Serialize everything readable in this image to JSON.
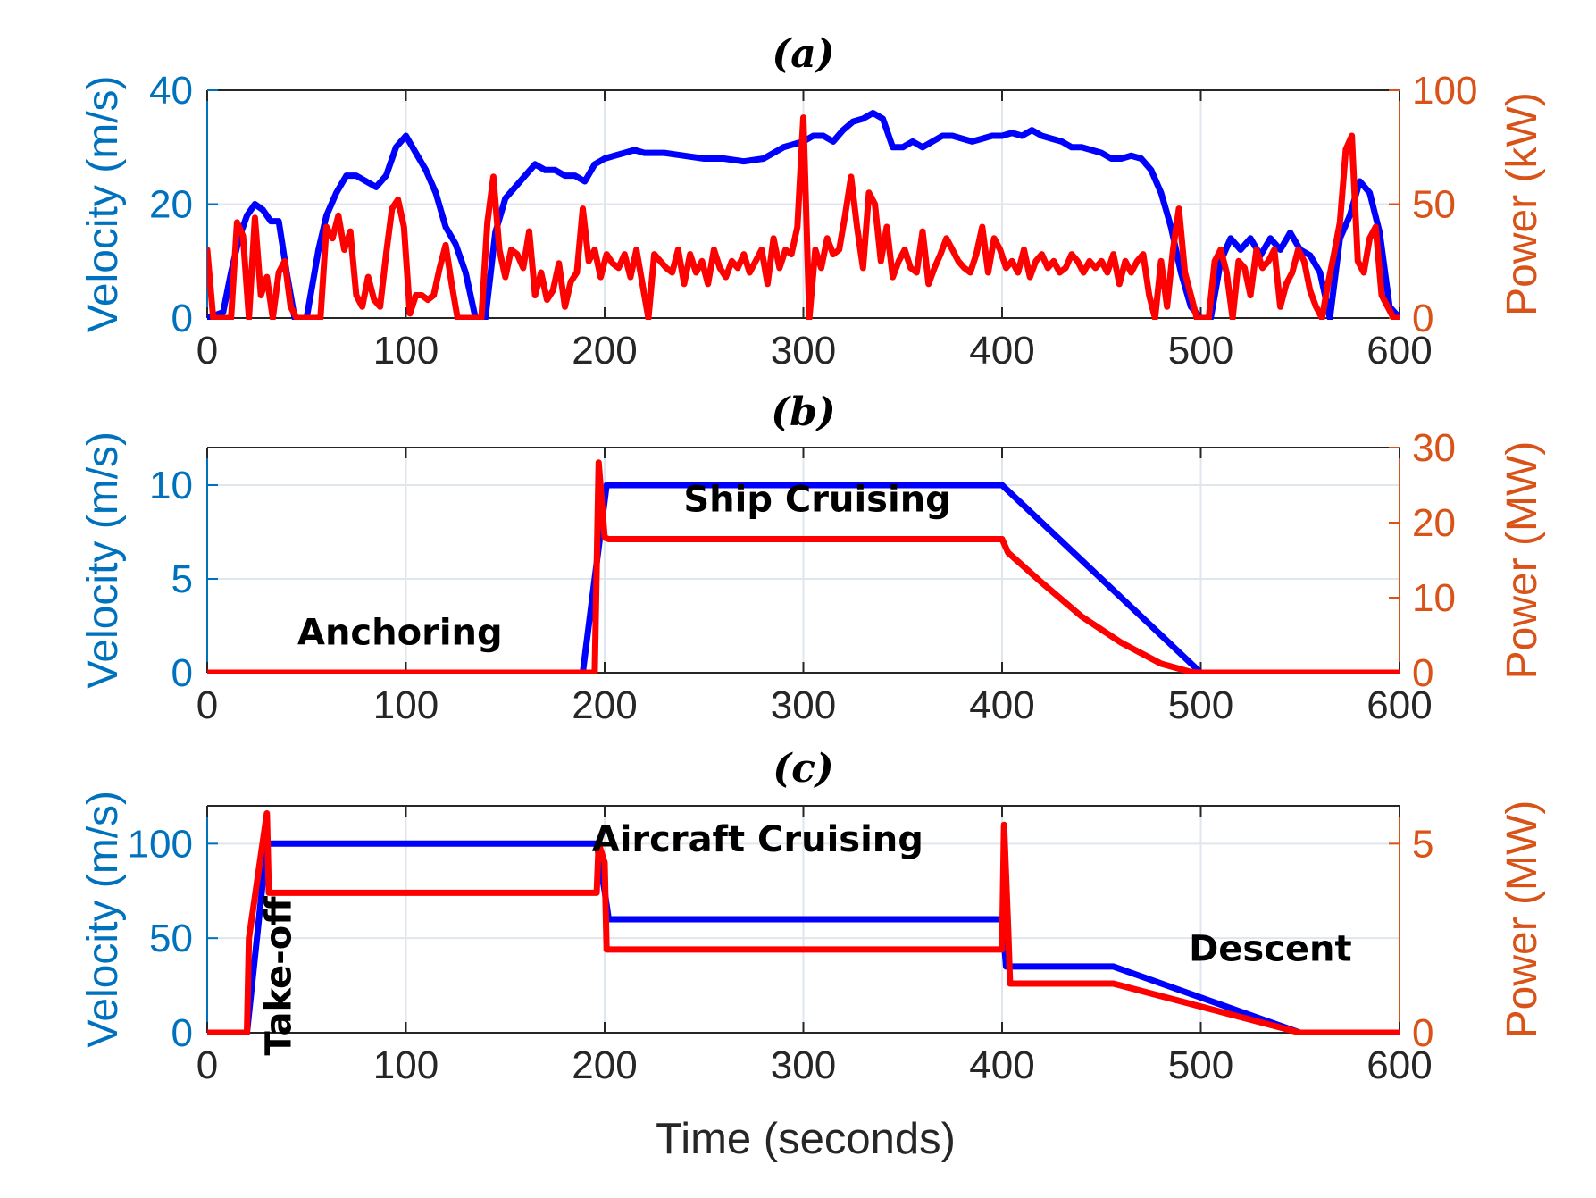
{
  "colors": {
    "velocity_line": "#0000ff",
    "power_line": "#ff0000",
    "left_axis": "#0072bd",
    "right_axis": "#d95319",
    "grid": "#dfe6ee",
    "frame": "#262626",
    "text": "#262626"
  },
  "xlabel": "Time (seconds)",
  "chart_data": [
    {
      "id": "a",
      "type": "line",
      "title": "(a)",
      "xlim": [
        0,
        600
      ],
      "xticks": [
        0,
        100,
        200,
        300,
        400,
        500,
        600
      ],
      "ylabel_left": "Velocity (m/s)",
      "ylim_left": [
        0,
        40
      ],
      "yticks_left": [
        0,
        20,
        40
      ],
      "ylabel_right": "Power (kW)",
      "ylim_right": [
        0,
        100
      ],
      "yticks_right": [
        0,
        50,
        100
      ],
      "grid": true,
      "annotations": [],
      "series": [
        {
          "name": "Velocity",
          "axis": "left",
          "x": [
            0,
            8,
            12,
            16,
            20,
            24,
            28,
            32,
            36,
            40,
            44,
            50,
            56,
            60,
            65,
            70,
            75,
            80,
            85,
            90,
            95,
            100,
            105,
            110,
            115,
            120,
            125,
            130,
            135,
            140,
            145,
            150,
            155,
            160,
            165,
            170,
            175,
            180,
            185,
            190,
            195,
            200,
            205,
            210,
            215,
            220,
            230,
            240,
            250,
            260,
            270,
            280,
            290,
            300,
            305,
            310,
            315,
            320,
            325,
            330,
            335,
            340,
            345,
            350,
            355,
            360,
            365,
            370,
            375,
            380,
            385,
            390,
            395,
            400,
            405,
            410,
            415,
            420,
            425,
            430,
            435,
            440,
            445,
            450,
            455,
            460,
            465,
            470,
            475,
            480,
            485,
            490,
            495,
            500,
            505,
            510,
            515,
            520,
            525,
            530,
            535,
            540,
            545,
            550,
            555,
            560,
            565,
            570,
            575,
            580,
            585,
            590,
            595,
            600
          ],
          "values": [
            0,
            1,
            8,
            14,
            18,
            20,
            19,
            17,
            17,
            8,
            0,
            0,
            12,
            18,
            22,
            25,
            25,
            24,
            23,
            25,
            30,
            32,
            29,
            26,
            22,
            16,
            13,
            8,
            0,
            0,
            15,
            21,
            23,
            25,
            27,
            26,
            26,
            25,
            25,
            24,
            27,
            28,
            28.5,
            29,
            29.5,
            29,
            29,
            28.5,
            28,
            28,
            27.5,
            28,
            30,
            31,
            32,
            32,
            31,
            33,
            34.5,
            35,
            36,
            35,
            30,
            30,
            31,
            30,
            31,
            32,
            32,
            31.5,
            31,
            31.5,
            32,
            32,
            32.5,
            32,
            33,
            32,
            31.5,
            31,
            30,
            30,
            29.5,
            29,
            28,
            28,
            28.5,
            28,
            26,
            22,
            16,
            8,
            2,
            0,
            0,
            10,
            14,
            12,
            14,
            11,
            14,
            12,
            15,
            12,
            11,
            8,
            0,
            14,
            18,
            24,
            22,
            15,
            2,
            0
          ]
        },
        {
          "name": "Power",
          "axis": "right",
          "x": [
            0,
            3,
            6,
            9,
            12,
            15,
            18,
            21,
            24,
            27,
            30,
            33,
            36,
            39,
            42,
            45,
            48,
            51,
            54,
            57,
            60,
            63,
            66,
            69,
            72,
            75,
            78,
            81,
            84,
            87,
            90,
            93,
            96,
            99,
            102,
            105,
            108,
            111,
            114,
            117,
            120,
            123,
            126,
            129,
            132,
            135,
            138,
            141,
            144,
            147,
            150,
            153,
            156,
            159,
            162,
            165,
            168,
            171,
            174,
            177,
            180,
            183,
            186,
            189,
            192,
            195,
            198,
            201,
            204,
            207,
            210,
            213,
            216,
            219,
            222,
            225,
            228,
            231,
            234,
            237,
            240,
            243,
            246,
            249,
            252,
            255,
            258,
            261,
            264,
            267,
            270,
            273,
            276,
            279,
            282,
            285,
            288,
            291,
            294,
            297,
            300,
            303,
            306,
            309,
            312,
            315,
            318,
            321,
            324,
            327,
            330,
            333,
            336,
            339,
            342,
            345,
            348,
            351,
            354,
            357,
            360,
            363,
            366,
            369,
            372,
            375,
            378,
            381,
            384,
            387,
            390,
            393,
            396,
            399,
            402,
            405,
            408,
            411,
            414,
            417,
            420,
            423,
            426,
            429,
            432,
            435,
            438,
            441,
            444,
            447,
            450,
            453,
            456,
            459,
            462,
            465,
            468,
            471,
            474,
            477,
            480,
            483,
            486,
            489,
            492,
            495,
            498,
            501,
            504,
            507,
            510,
            513,
            516,
            519,
            522,
            525,
            528,
            531,
            534,
            537,
            540,
            543,
            546,
            549,
            552,
            555,
            558,
            561,
            564,
            567,
            570,
            573,
            576,
            579,
            582,
            585,
            588,
            591,
            594,
            597,
            600
          ],
          "values": [
            30,
            0,
            0,
            0,
            0,
            42,
            36,
            0,
            44,
            10,
            18,
            0,
            20,
            25,
            5,
            0,
            0,
            0,
            0,
            0,
            40,
            35,
            45,
            30,
            38,
            10,
            5,
            18,
            8,
            5,
            28,
            48,
            52,
            40,
            2,
            10,
            10,
            8,
            10,
            22,
            32,
            15,
            0,
            0,
            0,
            0,
            0,
            42,
            62,
            30,
            18,
            30,
            28,
            22,
            38,
            10,
            20,
            8,
            12,
            24,
            5,
            16,
            20,
            48,
            25,
            30,
            18,
            28,
            24,
            22,
            28,
            18,
            30,
            15,
            0,
            28,
            25,
            22,
            20,
            30,
            15,
            28,
            20,
            25,
            15,
            30,
            22,
            18,
            25,
            22,
            28,
            20,
            25,
            30,
            15,
            35,
            22,
            30,
            28,
            40,
            88,
            0,
            30,
            22,
            35,
            28,
            30,
            45,
            62,
            40,
            22,
            55,
            50,
            25,
            40,
            18,
            25,
            30,
            22,
            20,
            38,
            15,
            22,
            28,
            35,
            30,
            25,
            22,
            20,
            28,
            40,
            20,
            35,
            30,
            22,
            25,
            20,
            30,
            18,
            25,
            28,
            22,
            25,
            20,
            22,
            28,
            25,
            20,
            25,
            22,
            25,
            20,
            28,
            15,
            25,
            20,
            25,
            28,
            10,
            0,
            25,
            5,
            30,
            48,
            20,
            10,
            0,
            0,
            0,
            25,
            30,
            20,
            0,
            25,
            22,
            10,
            30,
            22,
            25,
            30,
            5,
            15,
            20,
            30,
            25,
            12,
            5,
            0,
            15,
            28,
            42,
            74,
            80,
            25,
            20,
            35,
            40,
            10,
            5,
            0,
            0
          ]
        }
      ]
    },
    {
      "id": "b",
      "type": "line",
      "title": "(b)",
      "xlim": [
        0,
        600
      ],
      "xticks": [
        0,
        100,
        200,
        300,
        400,
        500,
        600
      ],
      "ylabel_left": "Velocity (m/s)",
      "ylim_left": [
        0,
        12
      ],
      "yticks_left": [
        0,
        5,
        10
      ],
      "ylabel_right": "Power (MW)",
      "ylim_right": [
        0,
        30
      ],
      "yticks_right": [
        0,
        10,
        20,
        30
      ],
      "grid": true,
      "annotations": [
        {
          "text": "Anchoring",
          "x": 97,
          "y": 1.5
        },
        {
          "text": "Ship Cruising",
          "x": 307,
          "y": 8.6
        }
      ],
      "series": [
        {
          "name": "Velocity",
          "axis": "left",
          "x": [
            0,
            189,
            201,
            400,
            500,
            600
          ],
          "values": [
            0,
            0,
            10,
            10,
            0,
            0
          ]
        },
        {
          "name": "Power",
          "axis": "right",
          "x": [
            0,
            195,
            197,
            200,
            202,
            400,
            403,
            420,
            440,
            460,
            480,
            495,
            500,
            600
          ],
          "values": [
            0,
            0,
            28,
            18,
            17.8,
            17.8,
            16,
            12,
            7.5,
            4,
            1.2,
            0.1,
            0,
            0
          ]
        }
      ]
    },
    {
      "id": "c",
      "type": "line",
      "title": "(c)",
      "xlim": [
        0,
        600
      ],
      "xticks": [
        0,
        100,
        200,
        300,
        400,
        500,
        600
      ],
      "ylabel_left": "Velocity (m/s)",
      "ylim_left": [
        0,
        120
      ],
      "yticks_left": [
        0,
        50,
        100
      ],
      "ylabel_right": "Power (MW)",
      "ylim_right": [
        0,
        6
      ],
      "yticks_right": [
        0,
        5
      ],
      "grid": true,
      "annotations": [
        {
          "text": "Take-off",
          "x": 42,
          "y": 30,
          "rotate": -90
        },
        {
          "text": "Aircraft Cruising",
          "x": 277,
          "y": 96
        },
        {
          "text": "Descent",
          "x": 535,
          "y": 38
        }
      ],
      "series": [
        {
          "name": "Velocity",
          "axis": "left",
          "x": [
            0,
            20,
            30,
            196,
            200,
            202,
            400,
            402,
            456,
            550,
            600
          ],
          "values": [
            0,
            0,
            100,
            100,
            75,
            60,
            60,
            35,
            35,
            0,
            0
          ]
        },
        {
          "name": "Power",
          "axis": "right",
          "x": [
            0,
            20,
            21,
            30,
            31,
            196,
            197,
            200,
            201,
            400,
            401,
            403,
            404,
            456,
            550,
            600
          ],
          "values": [
            0,
            0,
            2.5,
            5.8,
            3.7,
            3.7,
            5.0,
            4.5,
            2.2,
            2.2,
            5.5,
            2.8,
            1.3,
            1.3,
            0,
            0
          ]
        }
      ]
    }
  ]
}
